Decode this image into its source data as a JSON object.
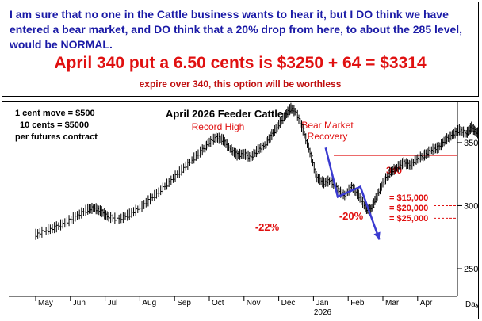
{
  "header": {
    "commentary": "I am sure that no one in the Cattle business wants to hear it, but I DO think we have entered a bear market, and DO think that a 20% drop from here, to about the 285 level, would be NORMAL.",
    "put_calc": "April 340 put a 6.50 cents is $3250 + 64 = $3314",
    "expire_note": "expire over 340, this option will be worthless"
  },
  "chart_data": {
    "type": "bar",
    "subtype": "ohlc",
    "title": "April 2026 Feeder Cattle",
    "notes": [
      "1 cent move = $500",
      "10 cents = $5000",
      "per futures contract"
    ],
    "x_tick_labels": [
      "May",
      "Jun",
      "Jul",
      "Aug",
      "Sep",
      "Oct",
      "Nov",
      "Dec",
      "Jan",
      "Feb",
      "Mar",
      "Apr"
    ],
    "x_year_label": "2026",
    "x_unit_label": "Day",
    "y_ticks": [
      250,
      300,
      350
    ],
    "ylim": [
      228,
      382
    ],
    "annotations": {
      "record_high": "Record High",
      "bear_market": "Bear Market",
      "recovery": "Recovery",
      "drop_low": "-22%",
      "projected_drop": "-20%",
      "strike": "340",
      "loss_15000": "= $15,000",
      "loss_20000": "= $20,000",
      "loss_25000": "= $25,000"
    },
    "strike_level": 340,
    "loss_levels": [
      310,
      300,
      290
    ],
    "projection": [
      {
        "x": "Jan",
        "y": 346
      },
      {
        "x": "Jan",
        "y": 307
      },
      {
        "x": "Feb",
        "y": 315
      },
      {
        "x": "Mar",
        "y": 273
      }
    ],
    "series": [
      {
        "values": [
          {
            "m": 0.0,
            "v": 277
          },
          {
            "m": 0.3,
            "v": 280
          },
          {
            "m": 0.6,
            "v": 283
          },
          {
            "m": 0.9,
            "v": 287
          },
          {
            "m": 1.2,
            "v": 292
          },
          {
            "m": 1.5,
            "v": 297
          },
          {
            "m": 1.7,
            "v": 298
          },
          {
            "m": 1.9,
            "v": 295
          },
          {
            "m": 2.1,
            "v": 291
          },
          {
            "m": 2.4,
            "v": 289
          },
          {
            "m": 2.7,
            "v": 293
          },
          {
            "m": 3.0,
            "v": 298
          },
          {
            "m": 3.3,
            "v": 305
          },
          {
            "m": 3.6,
            "v": 312
          },
          {
            "m": 3.9,
            "v": 320
          },
          {
            "m": 4.2,
            "v": 328
          },
          {
            "m": 4.5,
            "v": 336
          },
          {
            "m": 4.8,
            "v": 344
          },
          {
            "m": 5.0,
            "v": 350
          },
          {
            "m": 5.2,
            "v": 354
          },
          {
            "m": 5.4,
            "v": 352
          },
          {
            "m": 5.6,
            "v": 345
          },
          {
            "m": 5.8,
            "v": 340
          },
          {
            "m": 6.0,
            "v": 341
          },
          {
            "m": 6.2,
            "v": 338
          },
          {
            "m": 6.4,
            "v": 344
          },
          {
            "m": 6.6,
            "v": 348
          },
          {
            "m": 6.8,
            "v": 356
          },
          {
            "m": 7.0,
            "v": 364
          },
          {
            "m": 7.2,
            "v": 372
          },
          {
            "m": 7.35,
            "v": 377
          },
          {
            "m": 7.5,
            "v": 374
          },
          {
            "m": 7.7,
            "v": 360
          },
          {
            "m": 7.9,
            "v": 342
          },
          {
            "m": 8.1,
            "v": 322
          },
          {
            "m": 8.3,
            "v": 318
          },
          {
            "m": 8.5,
            "v": 320
          },
          {
            "m": 8.7,
            "v": 312
          },
          {
            "m": 8.9,
            "v": 308
          },
          {
            "m": 9.1,
            "v": 315
          },
          {
            "m": 9.3,
            "v": 308
          },
          {
            "m": 9.5,
            "v": 298
          },
          {
            "m": 9.65,
            "v": 296
          },
          {
            "m": 9.8,
            "v": 306
          },
          {
            "m": 10.0,
            "v": 318
          },
          {
            "m": 10.2,
            "v": 326
          },
          {
            "m": 10.4,
            "v": 330
          },
          {
            "m": 10.6,
            "v": 334
          },
          {
            "m": 10.8,
            "v": 332
          },
          {
            "m": 11.0,
            "v": 337
          },
          {
            "m": 11.2,
            "v": 340
          },
          {
            "m": 11.4,
            "v": 344
          },
          {
            "m": 11.6,
            "v": 346
          },
          {
            "m": 11.8,
            "v": 352
          },
          {
            "m": 12.0,
            "v": 356
          },
          {
            "m": 12.2,
            "v": 360
          },
          {
            "m": 12.4,
            "v": 357
          },
          {
            "m": 12.55,
            "v": 362
          },
          {
            "m": 12.7,
            "v": 358
          },
          {
            "m": 12.85,
            "v": 356
          }
        ]
      }
    ],
    "colors": {
      "bars": "#000000",
      "title": "#000000",
      "annotation_red": "#e01010",
      "projection_blue": "#3a3ad0",
      "commentary_blue": "#1a1aa6"
    }
  }
}
